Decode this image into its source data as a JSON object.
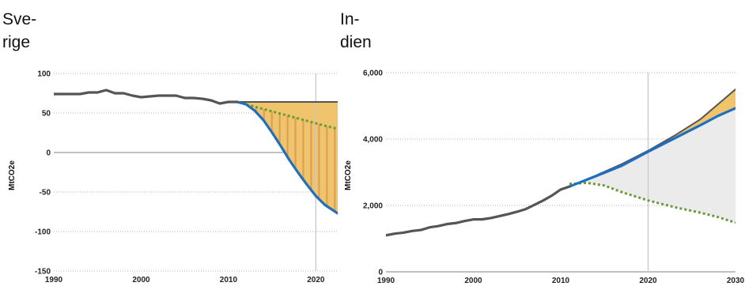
{
  "chart_data": [
    {
      "type": "area",
      "title_lines": [
        "Sve-",
        "rige"
      ],
      "ylabel": "MtCO2e",
      "xlim": [
        1990,
        2022.5
      ],
      "ylim": [
        -150,
        100
      ],
      "x_ticks": [
        "1990",
        "2000",
        "2010",
        "2020"
      ],
      "y_ticks": [
        "100",
        "50",
        "0",
        "-50",
        "-100",
        "-150"
      ],
      "grid": true,
      "vertical_marker_year": 2020,
      "colors": {
        "historical": "#555555",
        "blue": "#1f6fbf",
        "green": "#6a9a3c",
        "fill": "#f0c46c",
        "stripe": "#d9974f",
        "gray_fill": "#ebebeb",
        "marker_line": "#c8c8c8"
      },
      "series": [
        {
          "key": "historical",
          "x": [
            1990,
            1991,
            1992,
            1993,
            1994,
            1995,
            1996,
            1997,
            1998,
            1999,
            2000,
            2001,
            2002,
            2003,
            2004,
            2005,
            2006,
            2007,
            2008,
            2009,
            2010,
            2011
          ],
          "values": [
            74,
            74,
            74,
            74,
            76,
            76,
            79,
            75,
            75,
            72,
            70,
            71,
            72,
            72,
            72,
            69,
            69,
            68,
            66,
            62,
            64,
            64
          ]
        },
        {
          "key": "upper",
          "x": [
            2011,
            2014,
            2017,
            2020,
            2022.5
          ],
          "values": [
            64,
            64,
            64,
            64,
            64
          ]
        },
        {
          "key": "blue",
          "x": [
            2011,
            2012,
            2013,
            2014,
            2015,
            2016,
            2017,
            2018,
            2019,
            2020,
            2021,
            2022.5
          ],
          "values": [
            64,
            61,
            53,
            41,
            25,
            8,
            -10,
            -26,
            -41,
            -55,
            -66,
            -77
          ]
        },
        {
          "key": "green",
          "x": [
            2011,
            2013,
            2015,
            2017,
            2019,
            2021,
            2022.5
          ],
          "values": [
            64,
            58,
            52,
            46,
            40,
            34,
            30
          ]
        }
      ]
    },
    {
      "type": "area",
      "title_lines": [
        "In-",
        "dien"
      ],
      "ylabel": "MtCO2e",
      "xlim": [
        1990,
        2030
      ],
      "ylim": [
        0,
        6000
      ],
      "x_ticks": [
        "1990",
        "2000",
        "2010",
        "2020",
        "2030"
      ],
      "y_ticks": [
        "6,000",
        "4,000",
        "2,000",
        "0"
      ],
      "grid": true,
      "vertical_marker_year": 2020,
      "colors": {
        "historical": "#555555",
        "blue": "#1f6fbf",
        "green": "#6a9a3c",
        "fill": "#f0c46c",
        "stripe": "#d9974f",
        "gray_fill": "#ebebeb",
        "marker_line": "#c8c8c8"
      },
      "series": [
        {
          "key": "historical",
          "x": [
            1990,
            1991,
            1992,
            1993,
            1994,
            1995,
            1996,
            1997,
            1998,
            1999,
            2000,
            2001,
            2002,
            2003,
            2004,
            2005,
            2006,
            2007,
            2008,
            2009,
            2010,
            2011
          ],
          "values": [
            1100,
            1150,
            1180,
            1230,
            1260,
            1340,
            1380,
            1440,
            1470,
            1530,
            1580,
            1580,
            1620,
            1680,
            1740,
            1810,
            1890,
            2020,
            2150,
            2300,
            2480,
            2570
          ]
        },
        {
          "key": "upper",
          "x": [
            2011,
            2014,
            2017,
            2020,
            2023,
            2026,
            2028,
            2030
          ],
          "values": [
            2570,
            2900,
            3250,
            3650,
            4100,
            4600,
            5050,
            5500
          ]
        },
        {
          "key": "blue",
          "x": [
            2011,
            2014,
            2017,
            2020,
            2023,
            2026,
            2028,
            2030
          ],
          "values": [
            2570,
            2880,
            3200,
            3620,
            4020,
            4420,
            4700,
            4930
          ]
        },
        {
          "key": "green",
          "x": [
            2011,
            2013,
            2015,
            2017,
            2020,
            2023,
            2026,
            2028,
            2030
          ],
          "values": [
            2650,
            2680,
            2600,
            2400,
            2150,
            1950,
            1780,
            1650,
            1480
          ]
        }
      ]
    }
  ]
}
